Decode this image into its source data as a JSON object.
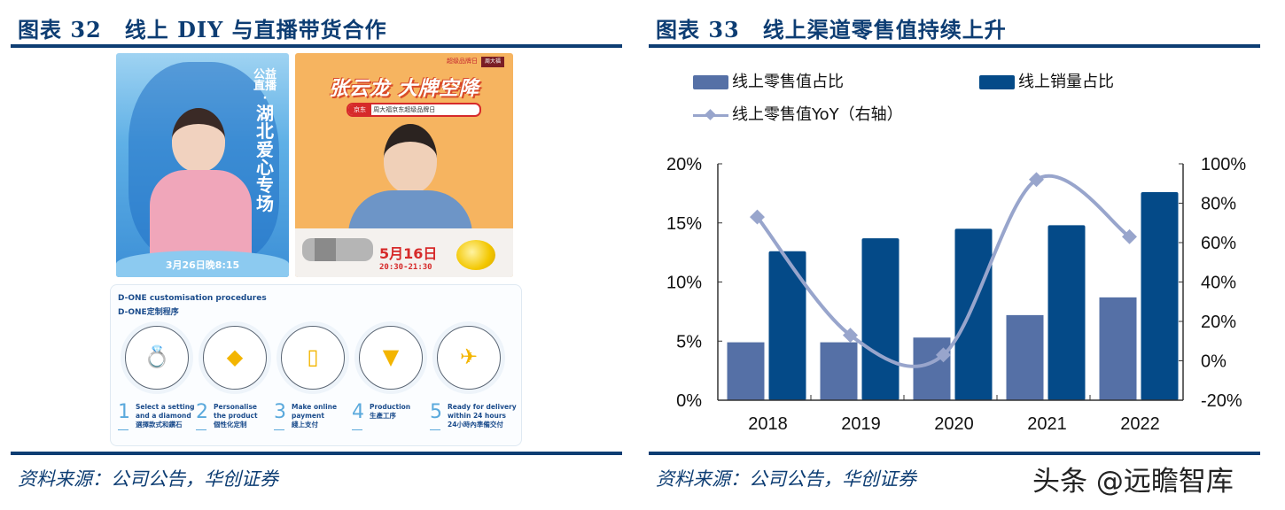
{
  "left_panel": {
    "title_num": "图表 32",
    "title_text": "线上 DIY 与直播带货合作",
    "poster_left": {
      "vertical_small": "公益直播·",
      "vertical_big": "湖北爱心专场",
      "date": "3月26日晚8:15"
    },
    "poster_right": {
      "brand_left": "超级品牌日",
      "brand_right": "周大福",
      "headline": "张云龙 大牌空降",
      "search_platform": "京东",
      "search_text": "周大福京东超级品牌日",
      "date": "5月16日",
      "time": "20:30-21:30"
    },
    "procedure": {
      "title_en": "D-ONE customisation procedures",
      "title_cn": "D-ONE定制程序",
      "steps": [
        {
          "num": "1",
          "en1": "Select a setting",
          "en2": "and a diamond",
          "cn": "選擇款式和鑽石",
          "icon": "ring-necklace-icon",
          "glyph": "💍"
        },
        {
          "num": "2",
          "en1": "Personalise",
          "en2": "the product",
          "cn": "個性化定制",
          "icon": "diamond-hand-icon",
          "glyph": "◆"
        },
        {
          "num": "3",
          "en1": "Make online",
          "en2": "payment",
          "cn": "綫上支付",
          "icon": "phone-cart-icon",
          "glyph": "▯"
        },
        {
          "num": "4",
          "en1": "Production",
          "en2": "",
          "cn": "生產工序",
          "icon": "production-machine-icon",
          "glyph": "▼"
        },
        {
          "num": "5",
          "en1": "Ready for delivery",
          "en2": "within 24 hours",
          "cn": "24小時內準備交付",
          "icon": "gift-plane-icon",
          "glyph": "✈"
        }
      ]
    },
    "source": "资料来源：公司公告，华创证券"
  },
  "right_panel": {
    "title_num": "图表 33",
    "title_text": "线上渠道零售值持续上升",
    "source": "资料来源：公司公告，华创证券"
  },
  "watermark": "头条 @远瞻智库",
  "colors": {
    "title_blue": "#0d3d73",
    "bar_light": "#5570a6",
    "bar_dark": "#044a88",
    "line": "#98a5cc"
  },
  "chart_data": {
    "type": "bar",
    "title": "线上渠道零售值持续上升",
    "categories": [
      "2018",
      "2019",
      "2020",
      "2021",
      "2022"
    ],
    "series": [
      {
        "name": "线上零售值占比",
        "type": "bar",
        "axis": "left",
        "color": "#5570a6",
        "values": [
          4.9,
          4.9,
          5.3,
          7.2,
          8.7
        ]
      },
      {
        "name": "线上销量占比",
        "type": "bar",
        "axis": "left",
        "color": "#044a88",
        "values": [
          12.6,
          13.7,
          14.5,
          14.8,
          17.6
        ]
      },
      {
        "name": "线上零售值YoY（右轴）",
        "type": "line",
        "axis": "right",
        "color": "#98a5cc",
        "smooth": true,
        "marker": "diamond",
        "values": [
          73,
          13,
          3,
          92,
          63
        ]
      }
    ],
    "left_axis": {
      "min": 0,
      "max": 20,
      "step": 5,
      "ticks": [
        "0%",
        "5%",
        "10%",
        "15%",
        "20%"
      ],
      "unit": "%"
    },
    "right_axis": {
      "min": -20,
      "max": 100,
      "step": 20,
      "ticks": [
        "-20%",
        "0%",
        "20%",
        "40%",
        "60%",
        "80%",
        "100%"
      ],
      "unit": "%"
    },
    "xlabel": "",
    "ylabel": "",
    "grid": false,
    "legend": {
      "position": "top",
      "entries": [
        "线上零售值占比",
        "线上销量占比",
        "线上零售值YoY（右轴）"
      ]
    }
  }
}
